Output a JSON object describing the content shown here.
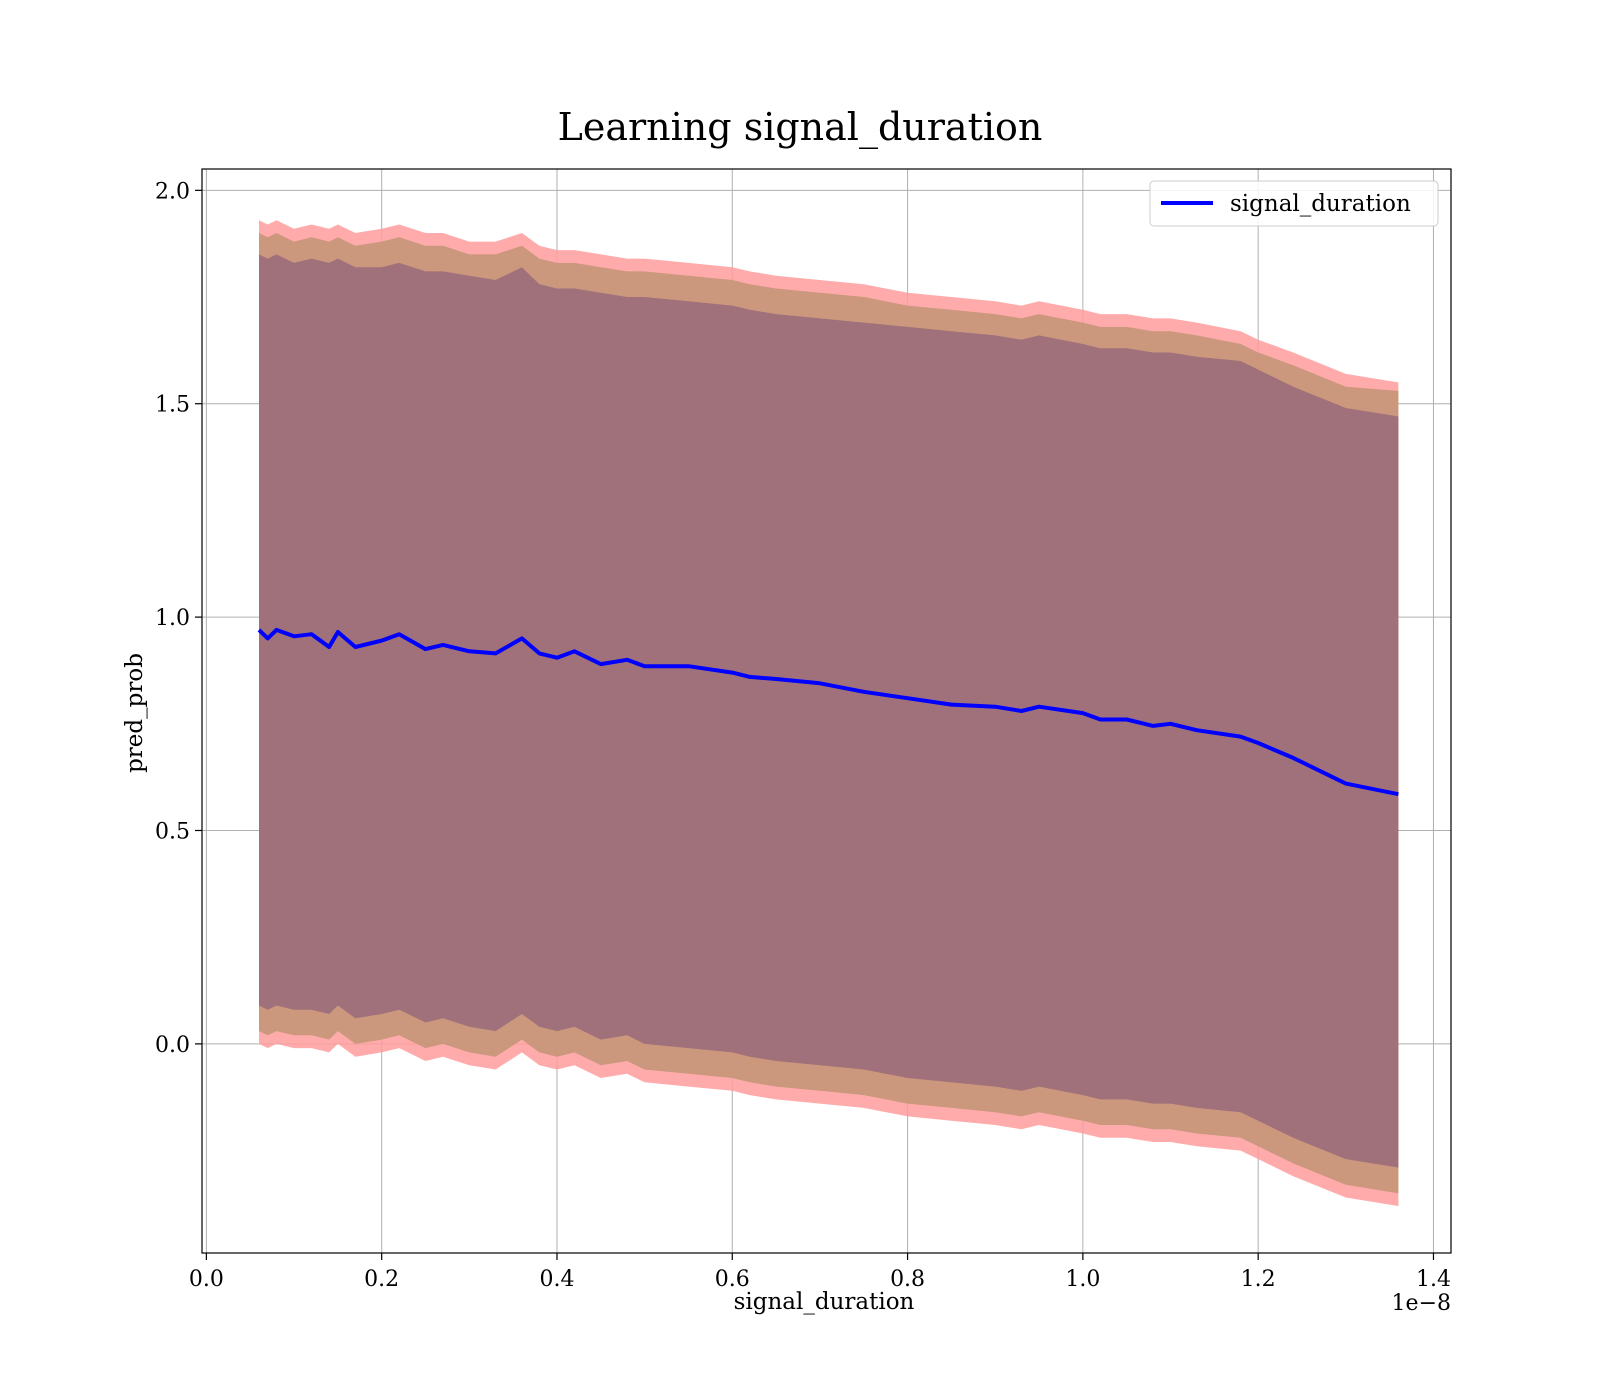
{
  "chart_data": {
    "type": "line",
    "title": "Learning signal_duration",
    "xlabel": "signal_duration",
    "ylabel": "pred_prob",
    "x_offset_label": "1e−8",
    "xlim": [
      -0.005,
      1.42
    ],
    "ylim": [
      -0.49,
      2.05
    ],
    "x_ticks": [
      0.0,
      0.2,
      0.4,
      0.6,
      0.8,
      1.0,
      1.2,
      1.4
    ],
    "x_tick_labels": [
      "0.0",
      "0.2",
      "0.4",
      "0.6",
      "0.8",
      "1.0",
      "1.2",
      "1.4"
    ],
    "y_ticks": [
      0.0,
      0.5,
      1.0,
      1.5,
      2.0
    ],
    "y_tick_labels": [
      "0.0",
      "0.5",
      "1.0",
      "1.5",
      "2.0"
    ],
    "grid": true,
    "legend_position": "top-right",
    "colors": {
      "line": "#0000ff",
      "band_outer": "#ff9c9c",
      "band_middle": "#c8967a",
      "band_inner": "#a0717a"
    },
    "series": [
      {
        "name": "signal_duration",
        "x": [
          0.06,
          0.07,
          0.08,
          0.1,
          0.12,
          0.14,
          0.15,
          0.17,
          0.2,
          0.22,
          0.25,
          0.27,
          0.3,
          0.33,
          0.36,
          0.38,
          0.4,
          0.42,
          0.45,
          0.48,
          0.5,
          0.55,
          0.6,
          0.62,
          0.65,
          0.7,
          0.75,
          0.8,
          0.85,
          0.9,
          0.93,
          0.95,
          1.0,
          1.02,
          1.05,
          1.08,
          1.1,
          1.13,
          1.18,
          1.2,
          1.24,
          1.3,
          1.36
        ],
        "y": [
          0.97,
          0.95,
          0.97,
          0.955,
          0.96,
          0.93,
          0.965,
          0.93,
          0.945,
          0.96,
          0.925,
          0.935,
          0.92,
          0.915,
          0.95,
          0.915,
          0.905,
          0.92,
          0.89,
          0.9,
          0.885,
          0.885,
          0.87,
          0.86,
          0.855,
          0.845,
          0.825,
          0.81,
          0.795,
          0.79,
          0.78,
          0.79,
          0.775,
          0.76,
          0.76,
          0.745,
          0.75,
          0.735,
          0.72,
          0.705,
          0.67,
          0.61,
          0.585
        ],
        "upper_outer": [
          1.93,
          1.92,
          1.93,
          1.91,
          1.92,
          1.91,
          1.92,
          1.9,
          1.91,
          1.92,
          1.9,
          1.9,
          1.88,
          1.88,
          1.9,
          1.87,
          1.86,
          1.86,
          1.85,
          1.84,
          1.84,
          1.83,
          1.82,
          1.81,
          1.8,
          1.79,
          1.78,
          1.76,
          1.75,
          1.74,
          1.73,
          1.74,
          1.72,
          1.71,
          1.71,
          1.7,
          1.7,
          1.69,
          1.67,
          1.65,
          1.62,
          1.57,
          1.55
        ],
        "upper_middle": [
          1.9,
          1.89,
          1.9,
          1.88,
          1.89,
          1.88,
          1.89,
          1.87,
          1.88,
          1.89,
          1.87,
          1.87,
          1.85,
          1.85,
          1.87,
          1.84,
          1.83,
          1.83,
          1.82,
          1.81,
          1.81,
          1.8,
          1.79,
          1.78,
          1.77,
          1.76,
          1.75,
          1.73,
          1.72,
          1.71,
          1.7,
          1.71,
          1.69,
          1.68,
          1.68,
          1.67,
          1.67,
          1.66,
          1.64,
          1.62,
          1.59,
          1.54,
          1.53
        ],
        "upper_inner": [
          1.85,
          1.84,
          1.85,
          1.83,
          1.84,
          1.83,
          1.84,
          1.82,
          1.82,
          1.83,
          1.81,
          1.81,
          1.8,
          1.79,
          1.82,
          1.78,
          1.77,
          1.77,
          1.76,
          1.75,
          1.75,
          1.74,
          1.73,
          1.72,
          1.71,
          1.7,
          1.69,
          1.68,
          1.67,
          1.66,
          1.65,
          1.66,
          1.64,
          1.63,
          1.63,
          1.62,
          1.62,
          1.61,
          1.6,
          1.58,
          1.54,
          1.49,
          1.47
        ],
        "lower_inner": [
          0.09,
          0.08,
          0.09,
          0.08,
          0.08,
          0.07,
          0.09,
          0.06,
          0.07,
          0.08,
          0.05,
          0.06,
          0.04,
          0.03,
          0.07,
          0.04,
          0.03,
          0.04,
          0.01,
          0.02,
          0.0,
          -0.01,
          -0.02,
          -0.03,
          -0.04,
          -0.05,
          -0.06,
          -0.08,
          -0.09,
          -0.1,
          -0.11,
          -0.1,
          -0.12,
          -0.13,
          -0.13,
          -0.14,
          -0.14,
          -0.15,
          -0.16,
          -0.18,
          -0.22,
          -0.27,
          -0.29
        ],
        "lower_middle": [
          0.03,
          0.02,
          0.03,
          0.02,
          0.02,
          0.01,
          0.03,
          0.0,
          0.01,
          0.02,
          -0.01,
          0.0,
          -0.02,
          -0.03,
          0.01,
          -0.02,
          -0.03,
          -0.02,
          -0.05,
          -0.04,
          -0.06,
          -0.07,
          -0.08,
          -0.09,
          -0.1,
          -0.11,
          -0.12,
          -0.14,
          -0.15,
          -0.16,
          -0.17,
          -0.16,
          -0.18,
          -0.19,
          -0.19,
          -0.2,
          -0.2,
          -0.21,
          -0.22,
          -0.24,
          -0.28,
          -0.33,
          -0.35
        ],
        "lower_outer": [
          0.0,
          -0.01,
          0.0,
          -0.01,
          -0.01,
          -0.02,
          0.0,
          -0.03,
          -0.02,
          -0.01,
          -0.04,
          -0.03,
          -0.05,
          -0.06,
          -0.02,
          -0.05,
          -0.06,
          -0.05,
          -0.08,
          -0.07,
          -0.09,
          -0.1,
          -0.11,
          -0.12,
          -0.13,
          -0.14,
          -0.15,
          -0.17,
          -0.18,
          -0.19,
          -0.2,
          -0.19,
          -0.21,
          -0.22,
          -0.22,
          -0.23,
          -0.23,
          -0.24,
          -0.25,
          -0.27,
          -0.31,
          -0.36,
          -0.38
        ]
      }
    ]
  }
}
